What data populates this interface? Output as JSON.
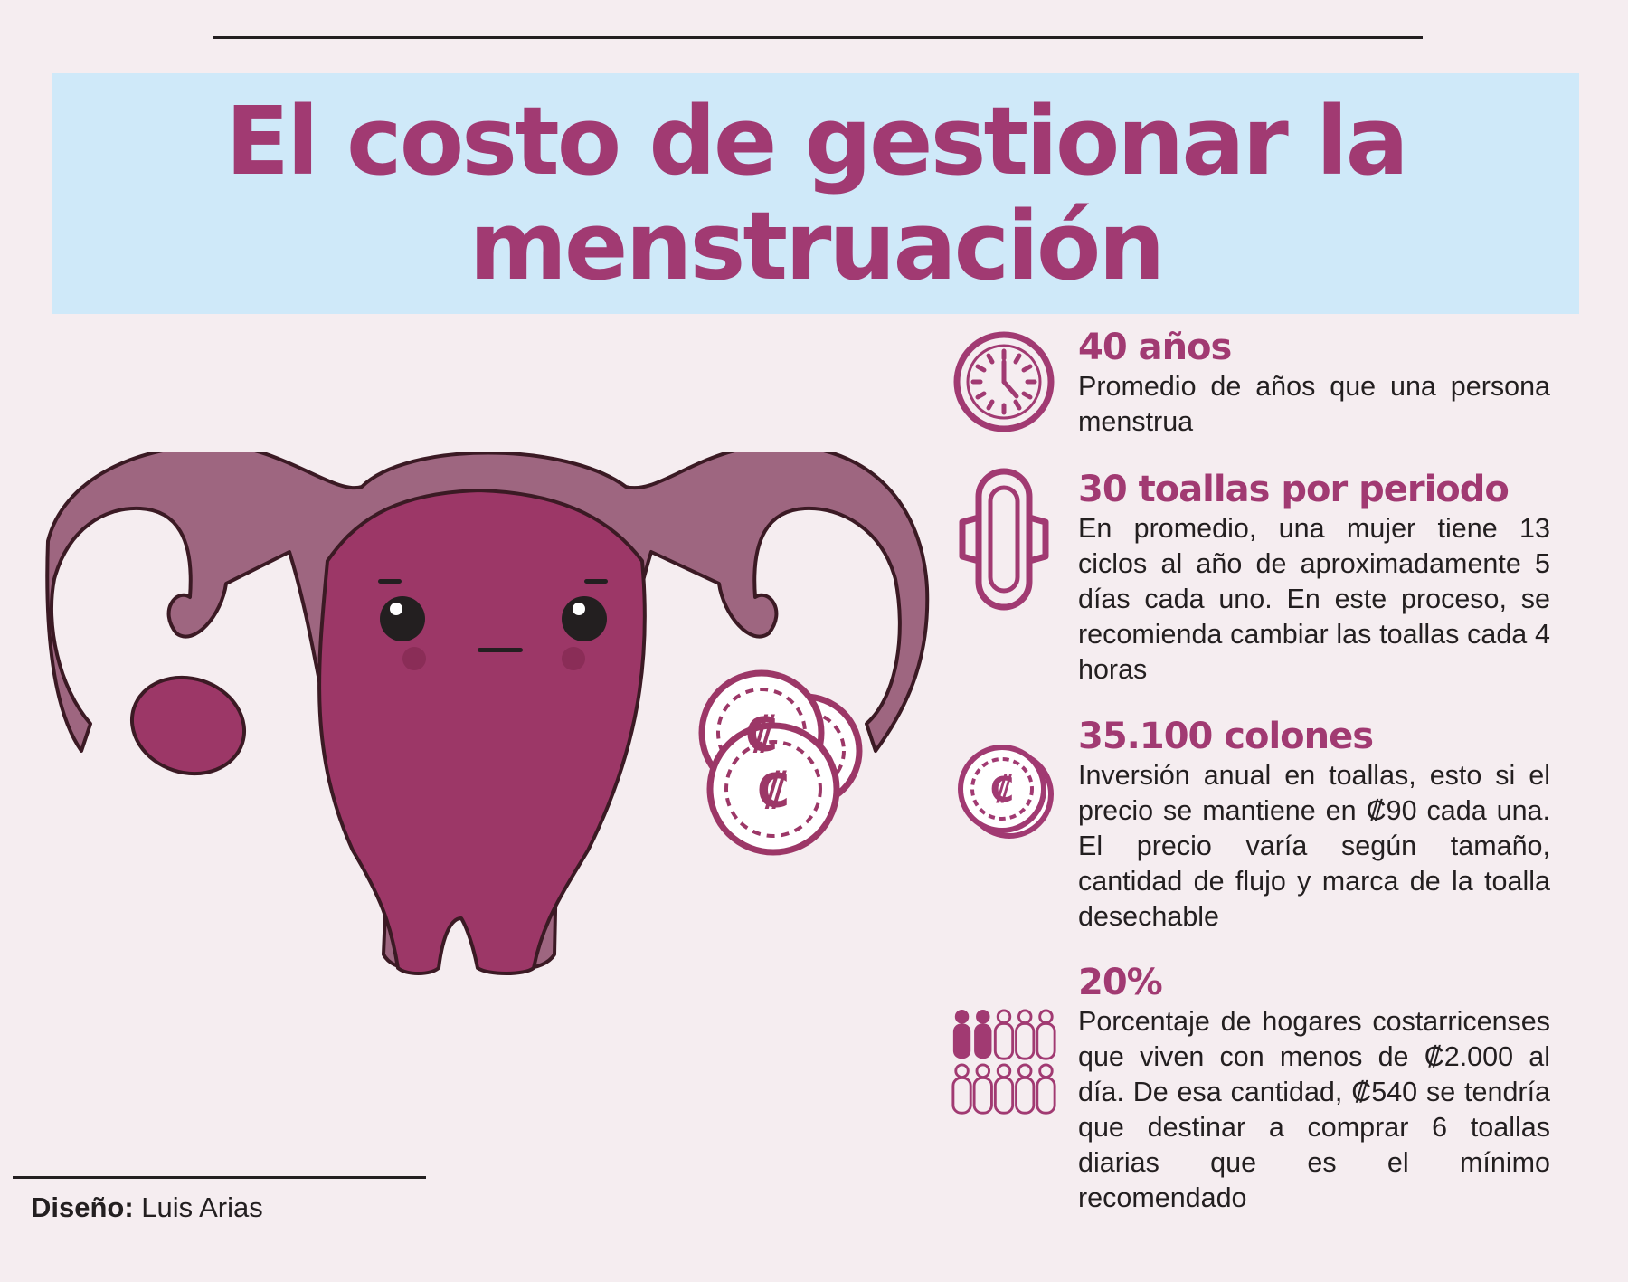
{
  "header": {
    "title_line1": "El costo de gestionar la",
    "title_line2": "menstruación"
  },
  "stats": [
    {
      "icon": "clock-icon",
      "value": "40 años",
      "description": "Promedio de años que una persona menstrua"
    },
    {
      "icon": "sanitary-pad-icon",
      "value": "30 toallas por periodo",
      "description": "En promedio, una mujer tiene 13 ciclos al año de aproximadamente 5 días cada uno. En este proceso, se recomienda cambiar las toallas cada 4 horas"
    },
    {
      "icon": "colon-coin-icon",
      "value": "35.100 colones",
      "description": "Inversión anual en toallas, esto si el precio se mantiene en ₡90 cada una. El precio varía según tamaño, cantidad de flujo y marca de la toalla desechable"
    },
    {
      "icon": "people-group-icon",
      "value": "20%",
      "description": "Porcentaje de hogares costarricenses que viven con menos de ₡2.000 al día. De esa cantidad, ₡540 se tendría que destinar a comprar 6 toallas diarias que es el mínimo recomendado"
    }
  ],
  "illustration": {
    "icon": "uterus-character-illustration",
    "coins_symbol": "₡"
  },
  "footer": {
    "credit_label": "Diseño:",
    "credit_name": " Luis Arias"
  },
  "colors": {
    "brand_magenta": "#a13a72",
    "uterus_body": "#9c3767",
    "uterus_tubes": "#9e6680",
    "banner_blue": "#cfe9f9",
    "background": "#f5edf0"
  }
}
